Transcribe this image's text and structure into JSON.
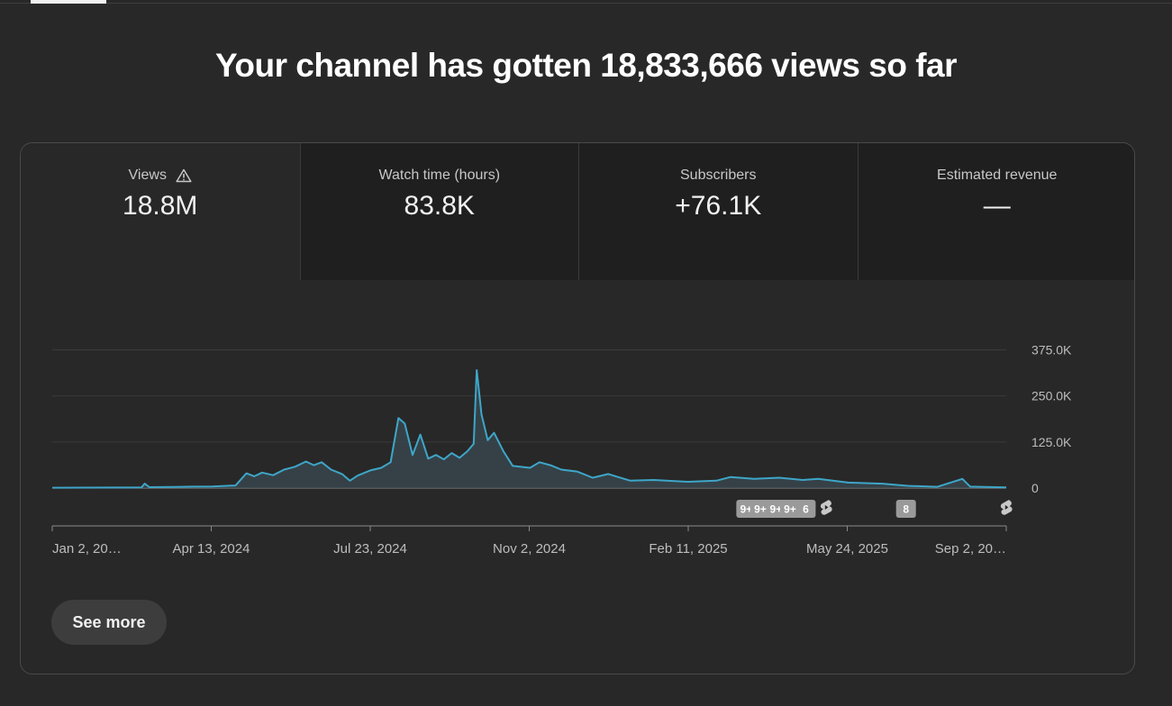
{
  "headline": "Your channel has gotten 18,833,666 views so far",
  "metrics": [
    {
      "label": "Views",
      "value": "18.8M",
      "icon": "warning-icon",
      "active": true
    },
    {
      "label": "Watch time (hours)",
      "value": "83.8K",
      "active": false
    },
    {
      "label": "Subscribers",
      "value": "+76.1K",
      "active": false
    },
    {
      "label": "Estimated revenue",
      "value": "—",
      "active": false
    }
  ],
  "see_more_label": "See more",
  "colors": {
    "line": "#3ea6c8",
    "fill": "#3a4a52",
    "background": "#282828",
    "grid": "#3a3a3a"
  },
  "chart_data": {
    "type": "area",
    "title": "",
    "xlabel": "",
    "ylabel": "",
    "x_tick_labels": [
      "Jan 2, 20…",
      "Apr 13, 2024",
      "Jul 23, 2024",
      "Nov 2, 2024",
      "Feb 11, 2025",
      "May 24, 2025",
      "Sep 2, 20…"
    ],
    "y_tick_labels": [
      "375.0K",
      "250.0K",
      "125.0K",
      "0"
    ],
    "yticks": [
      375000,
      250000,
      125000,
      0
    ],
    "ylim": [
      0,
      375000
    ],
    "x_start": "2024-01-02",
    "x_end": "2025-09-02",
    "grid": true,
    "series": [
      {
        "points": [
          [
            "2024-01-02",
            1000
          ],
          [
            "2024-02-15",
            1500
          ],
          [
            "2024-02-28",
            2000
          ],
          [
            "2024-03-01",
            12000
          ],
          [
            "2024-03-04",
            2500
          ],
          [
            "2024-03-20",
            3000
          ],
          [
            "2024-04-01",
            4000
          ],
          [
            "2024-04-13",
            4500
          ],
          [
            "2024-04-28",
            7000
          ],
          [
            "2024-05-05",
            40000
          ],
          [
            "2024-05-10",
            32000
          ],
          [
            "2024-05-15",
            42000
          ],
          [
            "2024-05-22",
            35000
          ],
          [
            "2024-05-29",
            50000
          ],
          [
            "2024-06-05",
            58000
          ],
          [
            "2024-06-12",
            72000
          ],
          [
            "2024-06-17",
            62000
          ],
          [
            "2024-06-22",
            70000
          ],
          [
            "2024-06-28",
            50000
          ],
          [
            "2024-07-05",
            38000
          ],
          [
            "2024-07-10",
            20000
          ],
          [
            "2024-07-15",
            34000
          ],
          [
            "2024-07-23",
            48000
          ],
          [
            "2024-07-30",
            55000
          ],
          [
            "2024-08-05",
            70000
          ],
          [
            "2024-08-10",
            190000
          ],
          [
            "2024-08-14",
            175000
          ],
          [
            "2024-08-19",
            90000
          ],
          [
            "2024-08-24",
            145000
          ],
          [
            "2024-08-29",
            80000
          ],
          [
            "2024-09-03",
            90000
          ],
          [
            "2024-09-08",
            78000
          ],
          [
            "2024-09-13",
            95000
          ],
          [
            "2024-09-18",
            82000
          ],
          [
            "2024-09-23",
            100000
          ],
          [
            "2024-09-27",
            120000
          ],
          [
            "2024-09-29",
            320000
          ],
          [
            "2024-10-02",
            200000
          ],
          [
            "2024-10-06",
            130000
          ],
          [
            "2024-10-10",
            150000
          ],
          [
            "2024-10-16",
            100000
          ],
          [
            "2024-10-22",
            60000
          ],
          [
            "2024-11-02",
            55000
          ],
          [
            "2024-11-08",
            70000
          ],
          [
            "2024-11-15",
            62000
          ],
          [
            "2024-11-22",
            50000
          ],
          [
            "2024-12-02",
            45000
          ],
          [
            "2024-12-12",
            28000
          ],
          [
            "2024-12-22",
            38000
          ],
          [
            "2025-01-05",
            20000
          ],
          [
            "2025-01-20",
            22000
          ],
          [
            "2025-02-11",
            17000
          ],
          [
            "2025-03-01",
            20000
          ],
          [
            "2025-03-10",
            30000
          ],
          [
            "2025-03-25",
            25000
          ],
          [
            "2025-04-10",
            28000
          ],
          [
            "2025-04-25",
            22000
          ],
          [
            "2025-05-05",
            25000
          ],
          [
            "2025-05-24",
            15000
          ],
          [
            "2025-06-15",
            12000
          ],
          [
            "2025-07-01",
            6000
          ],
          [
            "2025-07-20",
            3500
          ],
          [
            "2025-08-05",
            25000
          ],
          [
            "2025-08-10",
            4000
          ],
          [
            "2025-09-02",
            2000
          ]
        ]
      }
    ],
    "event_markers": [
      {
        "date": "2025-03-20",
        "label": "9+"
      },
      {
        "date": "2025-03-29",
        "label": "9+"
      },
      {
        "date": "2025-04-08",
        "label": "9+"
      },
      {
        "date": "2025-04-17",
        "label": "9+"
      },
      {
        "date": "2025-04-27",
        "label": "6"
      },
      {
        "date": "2025-05-10",
        "icon": "shorts-icon"
      },
      {
        "date": "2025-06-30",
        "label": "8"
      },
      {
        "date": "2025-09-02",
        "icon": "shorts-icon"
      }
    ]
  }
}
